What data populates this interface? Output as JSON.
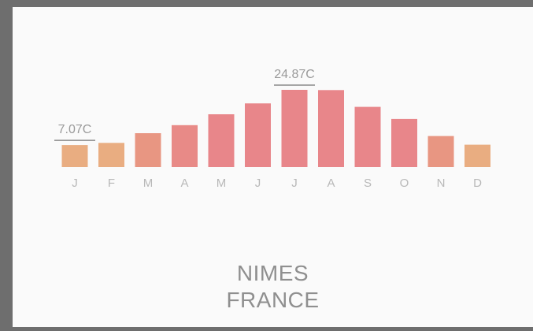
{
  "chart_data": {
    "type": "bar",
    "categories": [
      "J",
      "F",
      "M",
      "A",
      "M",
      "J",
      "J",
      "A",
      "S",
      "O",
      "N",
      "D"
    ],
    "values": [
      7.07,
      7.8,
      10.9,
      13.5,
      17.0,
      20.5,
      24.87,
      24.8,
      19.4,
      15.5,
      10.0,
      7.2
    ],
    "colors": [
      "#e9ad81",
      "#e9ad81",
      "#e89682",
      "#e88a87",
      "#e8868a",
      "#e8868a",
      "#e8868a",
      "#e8868a",
      "#e8868a",
      "#e8868a",
      "#e89682",
      "#e9ad81"
    ],
    "annotations": [
      {
        "index": 0,
        "label": "7.07C"
      },
      {
        "index": 6,
        "label": "24.87C"
      }
    ],
    "ylim": [
      0,
      24.87
    ]
  },
  "location": {
    "city": "NIMES",
    "country": "FRANCE"
  }
}
